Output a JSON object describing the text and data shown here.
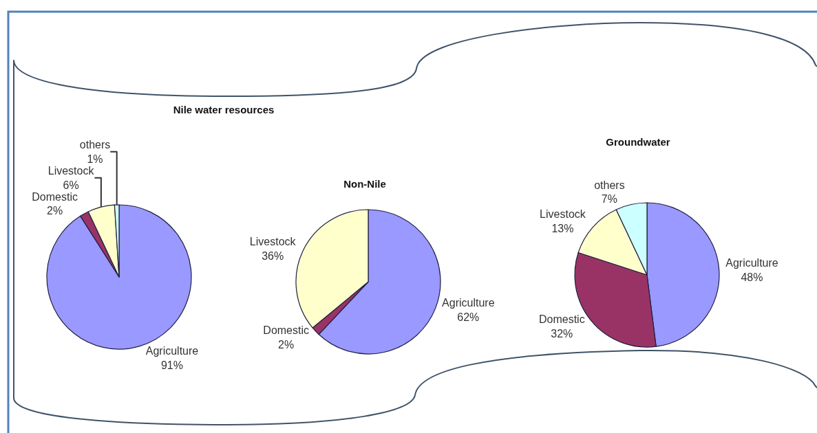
{
  "chart_data": [
    {
      "type": "pie",
      "title": "Nile water resources",
      "categories": [
        "Agriculture",
        "Domestic",
        "Livestock",
        "others"
      ],
      "values": [
        91,
        2,
        6,
        1
      ],
      "value_labels": [
        "91%",
        "2%",
        "6%",
        "1%"
      ],
      "colors": [
        "#9999ff",
        "#993366",
        "#ffffcc",
        "#ccffff"
      ]
    },
    {
      "type": "pie",
      "title": "Non-Nile",
      "categories": [
        "Agriculture",
        "Domestic",
        "Livestock"
      ],
      "values": [
        62,
        2,
        36
      ],
      "value_labels": [
        "62%",
        "2%",
        "36%"
      ],
      "colors": [
        "#9999ff",
        "#993366",
        "#ffffcc"
      ]
    },
    {
      "type": "pie",
      "title": "Groundwater",
      "categories": [
        "Agriculture",
        "Domestic",
        "Livestock",
        "others"
      ],
      "values": [
        48,
        32,
        13,
        7
      ],
      "value_labels": [
        "48%",
        "32%",
        "13%",
        "7%"
      ],
      "colors": [
        "#9999ff",
        "#993366",
        "#ffffcc",
        "#ccffff"
      ]
    }
  ]
}
